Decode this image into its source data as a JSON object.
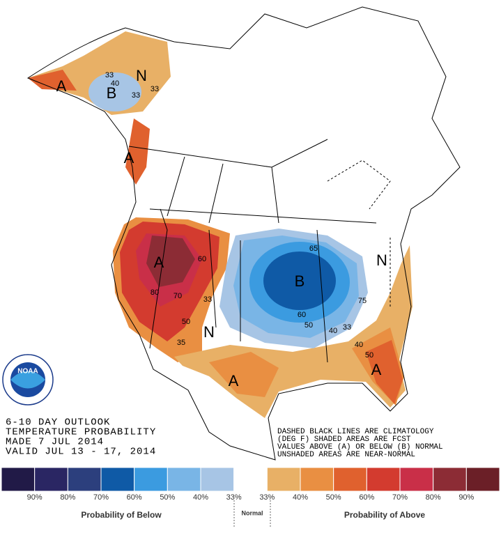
{
  "header": {
    "lines": [
      "6-10 DAY OUTLOOK",
      "TEMPERATURE PROBABILITY",
      "MADE  7 JUL 2014",
      "VALID  JUL 13 - 17, 2014"
    ]
  },
  "note": {
    "lines": [
      "DASHED BLACK LINES ARE CLIMATOLOGY",
      "(DEG F) SHADED AREAS ARE FCST",
      "VALUES ABOVE (A) OR BELOW (B) NORMAL",
      "UNSHADED AREAS ARE NEAR-NORMAL"
    ]
  },
  "logo": {
    "text": "NOAA"
  },
  "map": {
    "labels": [
      "A",
      "B",
      "N",
      "A",
      "A",
      "B",
      "N",
      "N",
      "A",
      "A"
    ],
    "contours": [
      "33",
      "40",
      "33",
      "33",
      "60",
      "70",
      "80",
      "50",
      "33",
      "65",
      "60",
      "50",
      "40",
      "33",
      "75",
      "40",
      "50",
      "35"
    ]
  },
  "legend": {
    "colors": [
      "#211a47",
      "#2a2663",
      "#2c3f7d",
      "#0f5aa6",
      "#3b9be0",
      "#79b5e6",
      "#a7c5e5",
      "#ffffff",
      "#e8b066",
      "#e98f42",
      "#e0612e",
      "#d33b2f",
      "#c92f48",
      "#8c2c35",
      "#6b1f27"
    ],
    "labels": [
      "90%",
      "80%",
      "70%",
      "60%",
      "50%",
      "40%",
      "33%",
      "33%",
      "40%",
      "50%",
      "60%",
      "70%",
      "80%",
      "90%"
    ],
    "below_title": "Probability of Below",
    "normal_title": "Normal",
    "above_title": "Probability of Above"
  }
}
